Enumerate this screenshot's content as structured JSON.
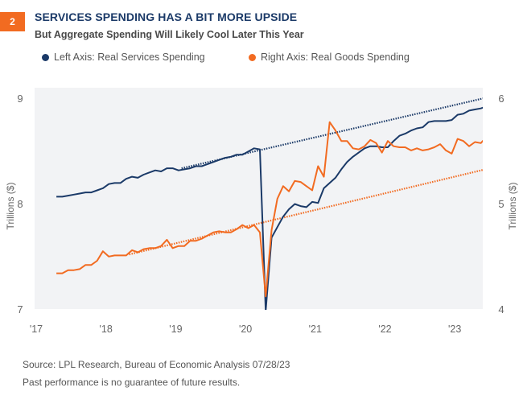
{
  "header": {
    "badge": "2",
    "title": "SERVICES SPENDING HAS A BIT MORE UPSIDE",
    "subtitle": "But Aggregate Spending Will Likely Cool Later This Year"
  },
  "footer": {
    "source": "Source: LPL Research, Bureau of Economic Analysis  07/28/23",
    "disclaimer": "Past performance is no guarantee of future results."
  },
  "chart_data": {
    "type": "line",
    "title": "SERVICES SPENDING HAS A BIT MORE UPSIDE",
    "subtitle": "But Aggregate Spending Will Likely Cool Later This Year",
    "x_start": "2017-04",
    "x_frequency": "monthly",
    "x_tick_labels": [
      "'17",
      "'18",
      "'19",
      "'20",
      "'21",
      "'22",
      "'23"
    ],
    "left_axis": {
      "label": "Trillions ($)",
      "range": [
        7,
        9
      ],
      "ticks": [
        "7",
        "8",
        "9"
      ]
    },
    "right_axis": {
      "label": "Trillions ($)",
      "range": [
        4,
        6
      ],
      "ticks": [
        "4",
        "5",
        "6"
      ]
    },
    "grid": false,
    "legend_position": "top",
    "series": [
      {
        "name": "Left Axis: Real Services Spending",
        "axis": "left",
        "color": "#1b3a68",
        "values": [
          8.07,
          8.07,
          8.08,
          8.09,
          8.1,
          8.11,
          8.11,
          8.13,
          8.15,
          8.19,
          8.2,
          8.2,
          8.24,
          8.26,
          8.25,
          8.28,
          8.3,
          8.32,
          8.31,
          8.34,
          8.34,
          8.32,
          8.33,
          8.34,
          8.36,
          8.36,
          8.38,
          8.4,
          8.42,
          8.44,
          8.45,
          8.47,
          8.47,
          8.5,
          8.53,
          8.52,
          6.98,
          7.68,
          7.78,
          7.88,
          7.95,
          8.0,
          7.98,
          7.97,
          8.02,
          8.01,
          8.15,
          8.2,
          8.25,
          8.33,
          8.4,
          8.45,
          8.49,
          8.53,
          8.55,
          8.55,
          8.54,
          8.54,
          8.6,
          8.65,
          8.67,
          8.7,
          8.72,
          8.73,
          8.78,
          8.79,
          8.79,
          8.79,
          8.8,
          8.85,
          8.86,
          8.89,
          8.9,
          8.91,
          8.93
        ]
      },
      {
        "name": "Right Axis: Real Goods Spending",
        "axis": "right",
        "color": "#f26b21",
        "values": [
          4.34,
          4.34,
          4.37,
          4.37,
          4.38,
          4.42,
          4.42,
          4.46,
          4.55,
          4.5,
          4.51,
          4.51,
          4.51,
          4.56,
          4.54,
          4.57,
          4.58,
          4.58,
          4.6,
          4.66,
          4.58,
          4.6,
          4.6,
          4.65,
          4.65,
          4.67,
          4.7,
          4.73,
          4.74,
          4.73,
          4.73,
          4.76,
          4.8,
          4.77,
          4.8,
          4.73,
          4.12,
          4.75,
          5.05,
          5.17,
          5.12,
          5.22,
          5.21,
          5.17,
          5.13,
          5.36,
          5.26,
          5.78,
          5.7,
          5.6,
          5.6,
          5.53,
          5.52,
          5.55,
          5.61,
          5.58,
          5.49,
          5.6,
          5.55,
          5.54,
          5.54,
          5.51,
          5.53,
          5.51,
          5.52,
          5.54,
          5.57,
          5.51,
          5.48,
          5.62,
          5.6,
          5.55,
          5.59,
          5.58,
          5.64
        ]
      }
    ],
    "trendlines": [
      {
        "series": "Left Axis: Real Services Spending",
        "style": "dotted",
        "from": {
          "x": "2019-02",
          "y": 8.34
        },
        "to": {
          "x": "2023-06",
          "y": 9.02
        }
      },
      {
        "series": "Right Axis: Real Goods Spending",
        "style": "dotted",
        "from": {
          "x": "2018-05",
          "y": 4.52
        },
        "to": {
          "x": "2023-06",
          "y": 5.34
        }
      }
    ]
  }
}
